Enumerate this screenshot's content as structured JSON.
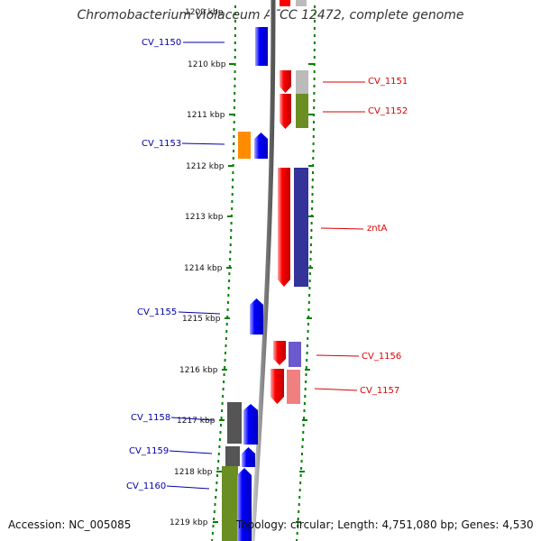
{
  "header": {
    "title": "Chromobacterium violaceum ATCC 12472, complete genome"
  },
  "footer": {
    "accession": "Accession: NC_005085",
    "topology": "Topology: circular; Length: 4,751,080 bp; Genes: 4,530"
  },
  "ticks": [
    "1210 kbp",
    "1211 kbp",
    "1212 kbp",
    "1213 kbp",
    "1214 kbp",
    "1215 kbp",
    "1216 kbp",
    "1217 kbp",
    "1218 kbp",
    "1219 kbp"
  ],
  "genes": [
    {
      "name": "CV_1150",
      "strand": "reverse",
      "color": "#0000ff",
      "cog": null
    },
    {
      "name": "CV_1151",
      "strand": "forward",
      "color": "#ff0000",
      "cog": "#bbbbbb"
    },
    {
      "name": "CV_1152",
      "strand": "forward",
      "color": "#ff0000",
      "cog": "#6b8e23"
    },
    {
      "name": "CV_1153",
      "strand": "reverse",
      "color": "#0000ff",
      "cog": "#ff8c00"
    },
    {
      "name": "zntA",
      "strand": "forward",
      "color": "#ff0000",
      "cog": "#333399"
    },
    {
      "name": "CV_1155",
      "strand": "reverse",
      "color": "#0000ff",
      "cog": null
    },
    {
      "name": "CV_1156",
      "strand": "forward",
      "color": "#ff0000",
      "cog": "#6a5acd"
    },
    {
      "name": "CV_1157",
      "strand": "forward",
      "color": "#ff0000",
      "cog": "#f08080"
    },
    {
      "name": "CV_1158",
      "strand": "reverse",
      "color": "#0000ff",
      "cog": "#555555"
    },
    {
      "name": "CV_1159",
      "strand": "reverse",
      "color": "#0000ff",
      "cog": "#555555"
    },
    {
      "name": "CV_1160",
      "strand": "reverse",
      "color": "#0000ff",
      "cog": "#6b8e23"
    }
  ],
  "colors": {
    "label_reverse": "#0000aa",
    "label_forward": "#dd0000",
    "tick_dots": "#008000",
    "backbone": "#888888"
  }
}
